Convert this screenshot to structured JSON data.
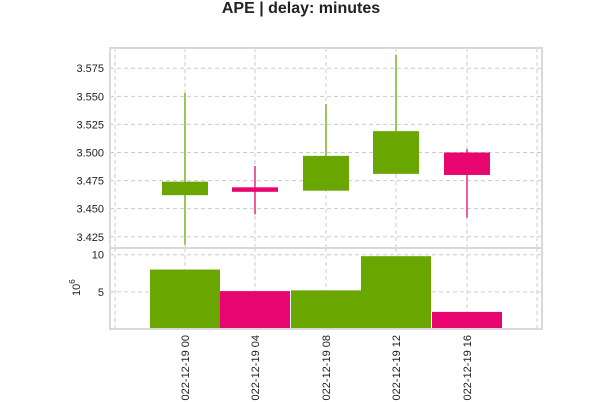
{
  "chart_data": {
    "type": "candlestick",
    "title": "APE | delay: minutes",
    "colors": {
      "up": "#6aa600",
      "down": "#e8056f",
      "grid": "#cccccc"
    },
    "x_tick_labels": [
      "022-12-19 00",
      "022-12-19 04",
      "022-12-19 08",
      "022-12-19 12",
      "022-12-19 16"
    ],
    "price_axis": {
      "ylim": [
        3.415,
        3.593
      ],
      "ticks": [
        3.425,
        3.45,
        3.475,
        3.5,
        3.525,
        3.55,
        3.575
      ],
      "tick_labels": [
        "3.425",
        "3.450",
        "3.475",
        "3.500",
        "3.525",
        "3.550",
        "3.575"
      ]
    },
    "volume_axis": {
      "ylim": [
        0,
        10.9
      ],
      "ticks": [
        5,
        10
      ],
      "tick_labels": [
        "5",
        "10"
      ],
      "multiplier_label": "10",
      "multiplier_exponent": "6"
    },
    "candles": [
      {
        "time": "2022-12-19 00",
        "open": 3.462,
        "high": 3.553,
        "low": 3.418,
        "close": 3.474,
        "direction": "up"
      },
      {
        "time": "2022-12-19 04",
        "open": 3.469,
        "high": 3.488,
        "low": 3.445,
        "close": 3.465,
        "direction": "down"
      },
      {
        "time": "2022-12-19 08",
        "open": 3.466,
        "high": 3.543,
        "low": 3.466,
        "close": 3.497,
        "direction": "up"
      },
      {
        "time": "2022-12-19 12",
        "open": 3.481,
        "high": 3.587,
        "low": 3.481,
        "close": 3.519,
        "direction": "up"
      },
      {
        "time": "2022-12-19 16",
        "open": 3.5,
        "high": 3.503,
        "low": 3.442,
        "close": 3.48,
        "direction": "down"
      }
    ],
    "volume": [
      {
        "time": "2022-12-19 00",
        "value": 8.0,
        "direction": "up"
      },
      {
        "time": "2022-12-19 04",
        "value": 5.1,
        "direction": "down"
      },
      {
        "time": "2022-12-19 08",
        "value": 5.2,
        "direction": "up"
      },
      {
        "time": "2022-12-19 12",
        "value": 9.8,
        "direction": "up"
      },
      {
        "time": "2022-12-19 16",
        "value": 2.3,
        "direction": "down"
      }
    ],
    "grid": true
  }
}
